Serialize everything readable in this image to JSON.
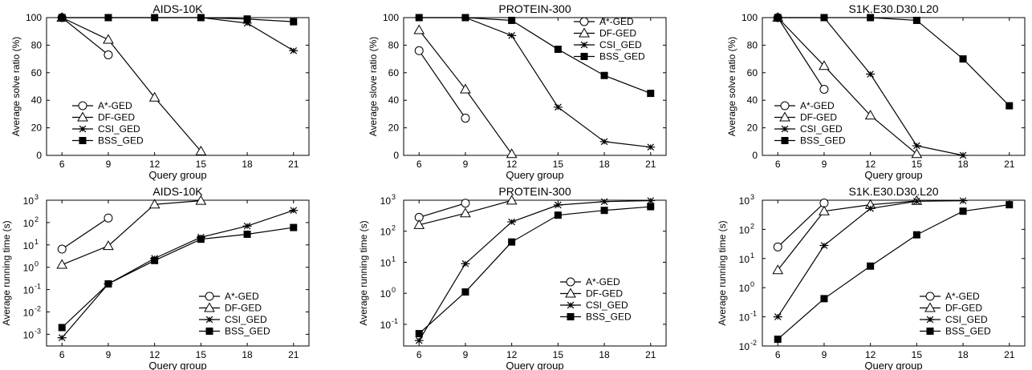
{
  "figure": {
    "title": ""
  },
  "styles": {
    "A*-GED": {
      "marker": "circle-open"
    },
    "DF-GED": {
      "marker": "triangle-open"
    },
    "CSI_GED": {
      "marker": "asterisk"
    },
    "BSS_GED": {
      "marker": "square-filled"
    }
  },
  "chart_data": [
    {
      "type": "line",
      "title": "AIDS-10K",
      "xlabel": "Query group",
      "ylabel": "Average solve ratio (%)",
      "yscale": "linear",
      "xlim": [
        5,
        22
      ],
      "ylim": [
        0,
        100
      ],
      "xticks": [
        6,
        9,
        12,
        15,
        18,
        21
      ],
      "yticks": [
        0,
        20,
        40,
        60,
        80,
        100
      ],
      "legend": "bottom-left",
      "series": [
        {
          "name": "A*-GED",
          "x": [
            6,
            9
          ],
          "y": [
            100,
            73
          ]
        },
        {
          "name": "DF-GED",
          "x": [
            6,
            9,
            12,
            15
          ],
          "y": [
            100,
            84,
            42,
            3
          ]
        },
        {
          "name": "CSI_GED",
          "x": [
            6,
            9,
            12,
            15,
            18,
            21
          ],
          "y": [
            100,
            100,
            100,
            100,
            96,
            76
          ]
        },
        {
          "name": "BSS_GED",
          "x": [
            6,
            9,
            12,
            15,
            18,
            21
          ],
          "y": [
            100,
            100,
            100,
            100,
            99,
            97
          ]
        }
      ]
    },
    {
      "type": "line",
      "title": "PROTEIN-300",
      "xlabel": "Query group",
      "ylabel": "Average slove ratio (%)",
      "yscale": "linear",
      "xlim": [
        5,
        22
      ],
      "ylim": [
        0,
        100
      ],
      "xticks": [
        6,
        9,
        12,
        15,
        18,
        21
      ],
      "yticks": [
        0,
        20,
        40,
        60,
        80,
        100
      ],
      "legend": "top-right",
      "series": [
        {
          "name": "A*-GED",
          "x": [
            6,
            9
          ],
          "y": [
            76,
            27
          ]
        },
        {
          "name": "DF-GED",
          "x": [
            6,
            9,
            12
          ],
          "y": [
            91,
            48,
            1
          ]
        },
        {
          "name": "CSI_GED",
          "x": [
            6,
            9,
            12,
            15,
            18,
            21
          ],
          "y": [
            100,
            100,
            87,
            35,
            10,
            6
          ]
        },
        {
          "name": "BSS_GED",
          "x": [
            6,
            9,
            12,
            15,
            18,
            21
          ],
          "y": [
            100,
            100,
            98,
            77,
            58,
            45
          ]
        }
      ]
    },
    {
      "type": "line",
      "title": "S1K.E30.D30.L20",
      "xlabel": "Query group",
      "ylabel": "Average solve ratio (%)",
      "yscale": "linear",
      "xlim": [
        5,
        22
      ],
      "ylim": [
        0,
        100
      ],
      "xticks": [
        6,
        9,
        12,
        15,
        18,
        21
      ],
      "yticks": [
        0,
        20,
        40,
        60,
        80,
        100
      ],
      "legend": "bottom-left",
      "series": [
        {
          "name": "A*-GED",
          "x": [
            6,
            9
          ],
          "y": [
            100,
            48
          ]
        },
        {
          "name": "DF-GED",
          "x": [
            6,
            9,
            12,
            15
          ],
          "y": [
            100,
            65,
            29,
            1
          ]
        },
        {
          "name": "CSI_GED",
          "x": [
            6,
            9,
            12,
            15,
            18
          ],
          "y": [
            100,
            100,
            59,
            7,
            0
          ]
        },
        {
          "name": "BSS_GED",
          "x": [
            6,
            9,
            12,
            15,
            18,
            21
          ],
          "y": [
            100,
            100,
            100,
            98,
            70,
            36
          ]
        }
      ]
    },
    {
      "type": "line",
      "title": "AIDS-10K",
      "xlabel": "Query group",
      "ylabel": "Average running time (s)",
      "yscale": "log",
      "xlim": [
        5,
        22
      ],
      "ylim": [
        0.0003,
        1000
      ],
      "xticks": [
        6,
        9,
        12,
        15,
        18,
        21
      ],
      "yticks": [
        0.001,
        0.01,
        0.1,
        1,
        10,
        100,
        1000
      ],
      "legend": "bottom-right",
      "series": [
        {
          "name": "A*-GED",
          "x": [
            6,
            9
          ],
          "y": [
            6.5,
            160
          ]
        },
        {
          "name": "DF-GED",
          "x": [
            6,
            9,
            12,
            15
          ],
          "y": [
            1.3,
            9,
            650,
            950
          ]
        },
        {
          "name": "CSI_GED",
          "x": [
            6,
            9,
            12,
            15,
            18,
            21
          ],
          "y": [
            0.0007,
            0.18,
            2.5,
            22,
            70,
            350
          ]
        },
        {
          "name": "BSS_GED",
          "x": [
            6,
            9,
            12,
            15,
            18,
            21
          ],
          "y": [
            0.002,
            0.18,
            2,
            18,
            30,
            60
          ]
        }
      ]
    },
    {
      "type": "line",
      "title": "PROTEIN-300",
      "xlabel": "Query group",
      "ylabel": "Average running time (s)",
      "yscale": "log",
      "xlim": [
        5,
        22
      ],
      "ylim": [
        0.02,
        1000
      ],
      "xticks": [
        6,
        9,
        12,
        15,
        18,
        21
      ],
      "yticks": [
        0.1,
        1,
        10,
        100,
        1000
      ],
      "legend": "bottom-right",
      "series": [
        {
          "name": "A*-GED",
          "x": [
            6,
            9
          ],
          "y": [
            280,
            800
          ]
        },
        {
          "name": "DF-GED",
          "x": [
            6,
            9,
            12
          ],
          "y": [
            160,
            380,
            980
          ]
        },
        {
          "name": "CSI_GED",
          "x": [
            6,
            9,
            12,
            15,
            18,
            21
          ],
          "y": [
            0.03,
            9,
            200,
            700,
            900,
            970
          ]
        },
        {
          "name": "BSS_GED",
          "x": [
            6,
            9,
            12,
            15,
            18,
            21
          ],
          "y": [
            0.05,
            1.1,
            45,
            330,
            470,
            620
          ]
        }
      ]
    },
    {
      "type": "line",
      "title": "S1K.E30.D30.L20",
      "xlabel": "Query group",
      "ylabel": "Average running time (s)",
      "yscale": "log",
      "xlim": [
        5,
        22
      ],
      "ylim": [
        0.01,
        1000
      ],
      "xticks": [
        6,
        9,
        12,
        15,
        18,
        21
      ],
      "yticks": [
        0.01,
        0.1,
        1,
        10,
        100,
        1000
      ],
      "legend": "bottom-right",
      "series": [
        {
          "name": "A*-GED",
          "x": [
            6,
            9
          ],
          "y": [
            25,
            800
          ]
        },
        {
          "name": "DF-GED",
          "x": [
            6,
            9,
            12,
            15
          ],
          "y": [
            4,
            420,
            700,
            950
          ]
        },
        {
          "name": "CSI_GED",
          "x": [
            6,
            9,
            12,
            15,
            18
          ],
          "y": [
            0.1,
            28,
            520,
            920,
            960
          ]
        },
        {
          "name": "BSS_GED",
          "x": [
            6,
            9,
            12,
            15,
            18,
            21
          ],
          "y": [
            0.017,
            0.42,
            5.5,
            65,
            420,
            700
          ]
        }
      ]
    }
  ]
}
